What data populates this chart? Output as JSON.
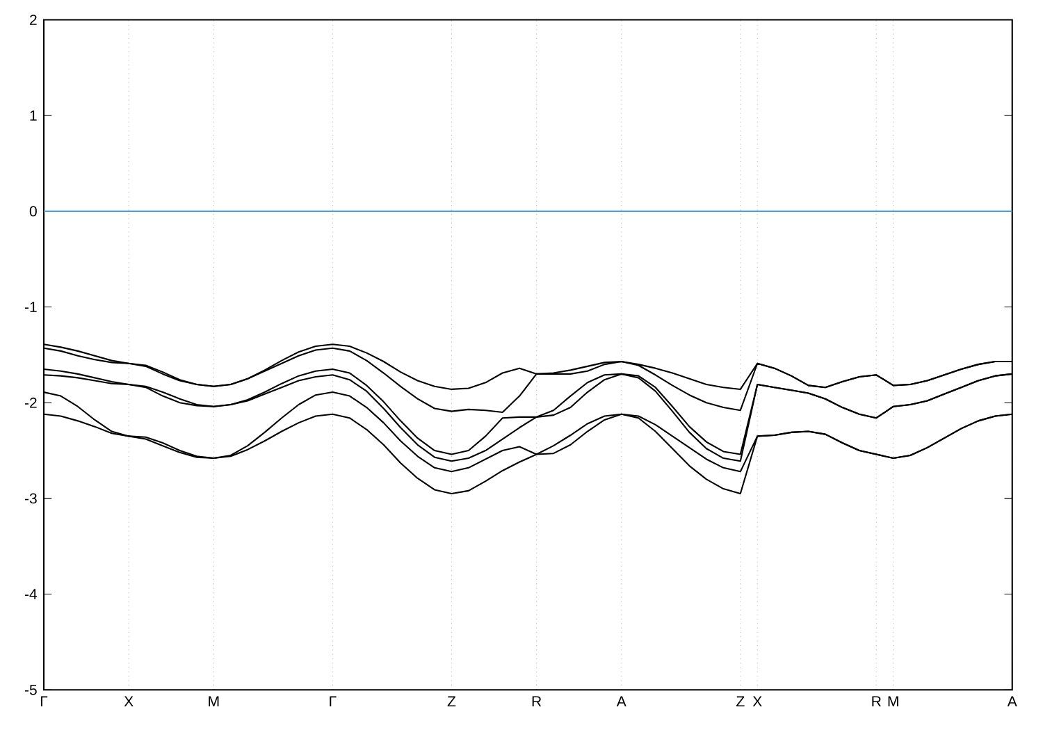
{
  "chart_data": {
    "type": "line",
    "categories": [
      "Γ",
      null,
      null,
      null,
      null,
      "X",
      null,
      null,
      null,
      null,
      "M",
      null,
      null,
      null,
      null,
      null,
      null,
      "Γ",
      null,
      null,
      null,
      null,
      null,
      null,
      "Z",
      null,
      null,
      null,
      null,
      "R",
      null,
      null,
      null,
      null,
      "A",
      null,
      null,
      null,
      null,
      null,
      null,
      "Z",
      "X",
      null,
      null,
      null,
      null,
      null,
      null,
      "R",
      "M",
      null,
      null,
      null,
      null,
      null,
      null,
      "A"
    ],
    "series": [
      {
        "color": "#000000",
        "values": [
          -1.39,
          -1.42,
          -1.46,
          -1.51,
          -1.56,
          -1.59,
          -1.61,
          -1.68,
          -1.76,
          -1.81,
          -1.83,
          -1.81,
          -1.75,
          -1.66,
          -1.56,
          -1.47,
          -1.41,
          -1.39,
          -1.41,
          -1.48,
          -1.57,
          -1.68,
          -1.77,
          -1.83,
          -1.86,
          -1.85,
          -1.79,
          -1.69,
          -1.64,
          -1.7,
          -1.69,
          -1.66,
          -1.62,
          -1.58,
          -1.57,
          -1.6,
          -1.64,
          -1.69,
          -1.75,
          -1.81,
          -1.84,
          -1.86,
          -1.59,
          -1.64,
          -1.72,
          -1.82,
          -1.84,
          -1.78,
          -1.73,
          -1.71,
          -1.82,
          -1.81,
          -1.77,
          -1.71,
          -1.65,
          -1.6,
          -1.57,
          -1.57
        ]
      },
      {
        "color": "#000000",
        "values": [
          -1.43,
          -1.46,
          -1.51,
          -1.55,
          -1.58,
          -1.59,
          -1.62,
          -1.7,
          -1.77,
          -1.81,
          -1.83,
          -1.81,
          -1.75,
          -1.67,
          -1.59,
          -1.51,
          -1.45,
          -1.43,
          -1.46,
          -1.56,
          -1.69,
          -1.83,
          -1.96,
          -2.06,
          -2.09,
          -2.07,
          -2.08,
          -2.1,
          -1.93,
          -1.7,
          -1.7,
          -1.7,
          -1.67,
          -1.6,
          -1.57,
          -1.61,
          -1.71,
          -1.82,
          -1.92,
          -2.0,
          -2.05,
          -2.08,
          -1.59,
          -1.64,
          -1.72,
          -1.82,
          -1.84,
          -1.78,
          -1.73,
          -1.71,
          -1.82,
          -1.81,
          -1.77,
          -1.71,
          -1.65,
          -1.6,
          -1.57,
          -1.57
        ]
      },
      {
        "color": "#000000",
        "values": [
          -1.65,
          -1.67,
          -1.7,
          -1.74,
          -1.78,
          -1.81,
          -1.83,
          -1.89,
          -1.96,
          -2.02,
          -2.04,
          -2.02,
          -1.97,
          -1.89,
          -1.8,
          -1.72,
          -1.67,
          -1.65,
          -1.69,
          -1.82,
          -1.99,
          -2.19,
          -2.37,
          -2.5,
          -2.54,
          -2.5,
          -2.35,
          -2.16,
          -2.15,
          -2.15,
          -2.08,
          -1.93,
          -1.79,
          -1.71,
          -1.7,
          -1.72,
          -1.84,
          -2.04,
          -2.25,
          -2.41,
          -2.51,
          -2.54,
          -1.81,
          -1.84,
          -1.87,
          -1.9,
          -1.96,
          -2.05,
          -2.12,
          -2.16,
          -2.04,
          -2.02,
          -1.98,
          -1.91,
          -1.84,
          -1.77,
          -1.72,
          -1.7
        ]
      },
      {
        "color": "#000000",
        "values": [
          -1.71,
          -1.72,
          -1.74,
          -1.77,
          -1.8,
          -1.81,
          -1.84,
          -1.93,
          -2.0,
          -2.03,
          -2.04,
          -2.02,
          -1.98,
          -1.91,
          -1.84,
          -1.77,
          -1.73,
          -1.71,
          -1.76,
          -1.88,
          -2.06,
          -2.26,
          -2.44,
          -2.57,
          -2.61,
          -2.58,
          -2.5,
          -2.38,
          -2.26,
          -2.15,
          -2.13,
          -2.05,
          -1.89,
          -1.76,
          -1.7,
          -1.74,
          -1.88,
          -2.09,
          -2.31,
          -2.48,
          -2.58,
          -2.61,
          -1.81,
          -1.84,
          -1.87,
          -1.9,
          -1.96,
          -2.05,
          -2.12,
          -2.16,
          -2.04,
          -2.02,
          -1.98,
          -1.91,
          -1.84,
          -1.77,
          -1.72,
          -1.7
        ]
      },
      {
        "color": "#000000",
        "values": [
          -1.89,
          -1.93,
          -2.04,
          -2.18,
          -2.3,
          -2.35,
          -2.36,
          -2.42,
          -2.5,
          -2.56,
          -2.58,
          -2.55,
          -2.45,
          -2.31,
          -2.16,
          -2.02,
          -1.92,
          -1.89,
          -1.93,
          -2.05,
          -2.21,
          -2.4,
          -2.56,
          -2.68,
          -2.72,
          -2.68,
          -2.59,
          -2.5,
          -2.46,
          -2.54,
          -2.45,
          -2.34,
          -2.22,
          -2.14,
          -2.12,
          -2.14,
          -2.23,
          -2.35,
          -2.47,
          -2.59,
          -2.68,
          -2.72,
          -2.35,
          -2.34,
          -2.31,
          -2.3,
          -2.33,
          -2.42,
          -2.5,
          -2.54,
          -2.58,
          -2.55,
          -2.47,
          -2.37,
          -2.27,
          -2.19,
          -2.14,
          -2.12
        ]
      },
      {
        "color": "#000000",
        "values": [
          -2.12,
          -2.14,
          -2.19,
          -2.25,
          -2.32,
          -2.35,
          -2.38,
          -2.45,
          -2.52,
          -2.57,
          -2.58,
          -2.56,
          -2.49,
          -2.4,
          -2.3,
          -2.21,
          -2.14,
          -2.12,
          -2.16,
          -2.28,
          -2.44,
          -2.63,
          -2.79,
          -2.91,
          -2.95,
          -2.92,
          -2.82,
          -2.71,
          -2.62,
          -2.54,
          -2.53,
          -2.44,
          -2.3,
          -2.18,
          -2.12,
          -2.16,
          -2.3,
          -2.48,
          -2.66,
          -2.8,
          -2.9,
          -2.95,
          -2.35,
          -2.34,
          -2.31,
          -2.3,
          -2.33,
          -2.42,
          -2.5,
          -2.54,
          -2.58,
          -2.55,
          -2.47,
          -2.37,
          -2.27,
          -2.19,
          -2.14,
          -2.12
        ]
      }
    ],
    "ylim": [
      -5,
      2
    ],
    "yticks": [
      -5,
      -4,
      -3,
      -2,
      -1,
      0,
      1,
      2
    ],
    "ref_lines": [
      {
        "axis": "y",
        "value": 0,
        "color": "#4ba3d9"
      }
    ],
    "grid": "x",
    "line_style": "solid",
    "marker": "none"
  }
}
